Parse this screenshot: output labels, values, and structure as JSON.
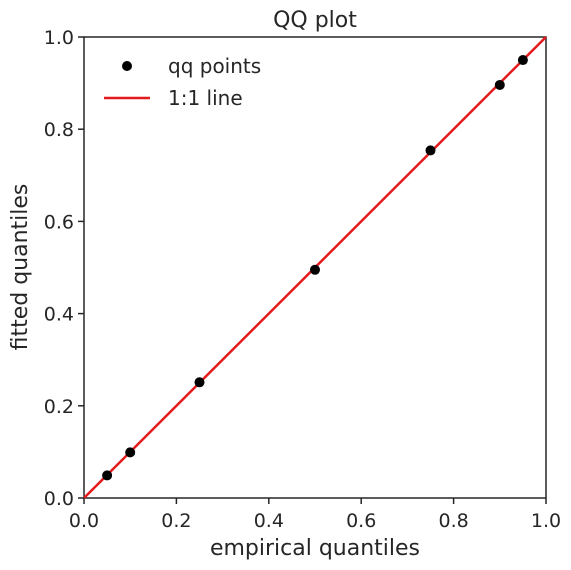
{
  "chart_data": {
    "type": "scatter",
    "title": "QQ plot",
    "xlabel": "empirical quantiles",
    "ylabel": "fitted quantiles",
    "xlim": [
      0.0,
      1.0
    ],
    "ylim": [
      0.0,
      1.0
    ],
    "xticks": [
      "0.0",
      "0.2",
      "0.4",
      "0.6",
      "0.8",
      "1.0"
    ],
    "yticks": [
      "0.0",
      "0.2",
      "0.4",
      "0.6",
      "0.8",
      "1.0"
    ],
    "grid": false,
    "legend_position": "top-left",
    "series": [
      {
        "name": "qq points",
        "kind": "scatter",
        "color": "#000000",
        "x": [
          0.05,
          0.1,
          0.25,
          0.5,
          0.75,
          0.9,
          0.95
        ],
        "y": [
          0.049,
          0.099,
          0.251,
          0.495,
          0.754,
          0.896,
          0.95
        ]
      },
      {
        "name": "1:1 line",
        "kind": "line",
        "color": "#e41a1c",
        "x": [
          0.0,
          1.0
        ],
        "y": [
          0.0,
          1.0
        ]
      }
    ]
  }
}
